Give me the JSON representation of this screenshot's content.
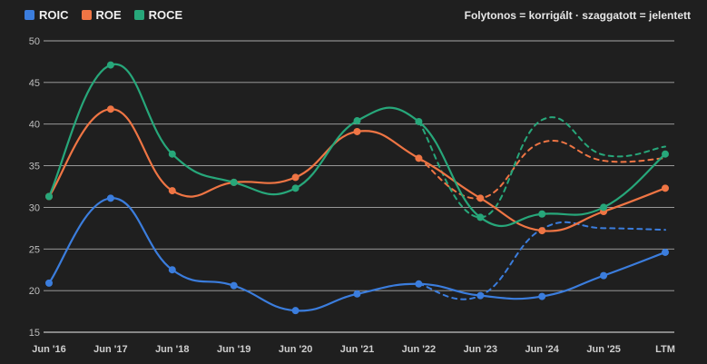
{
  "legend": {
    "items": [
      {
        "name": "ROIC",
        "color": "#3b7ddd"
      },
      {
        "name": "ROE",
        "color": "#ef7544"
      },
      {
        "name": "ROCE",
        "color": "#27a77a"
      }
    ],
    "note": "Folytonos = korrigált · szaggatott = jelentett"
  },
  "chart_data": {
    "type": "line",
    "categories": [
      "Jun '16",
      "Jun '17",
      "Jun '18",
      "Jun '19",
      "Jun '20",
      "Jun '21",
      "Jun '22",
      "Jun '23",
      "Jun '24",
      "Jun '25",
      "LTM"
    ],
    "ylim": [
      15,
      50
    ],
    "yticks": [
      15,
      20,
      25,
      30,
      35,
      40,
      45,
      50
    ],
    "grid": true,
    "legend_position": "top-left",
    "series": [
      {
        "name": "ROIC",
        "color": "#3b7ddd",
        "adjusted": [
          20.9,
          31.1,
          22.5,
          20.6,
          17.6,
          19.6,
          20.8,
          19.4,
          19.3,
          21.8,
          24.6
        ],
        "reported": [
          null,
          null,
          null,
          null,
          null,
          null,
          20.8,
          19.4,
          27.4,
          27.5,
          27.3
        ]
      },
      {
        "name": "ROE",
        "color": "#ef7544",
        "adjusted": [
          31.3,
          41.8,
          32.0,
          33.0,
          33.6,
          39.1,
          35.9,
          31.1,
          27.2,
          29.5,
          32.3
        ],
        "reported": [
          null,
          null,
          null,
          null,
          null,
          null,
          35.9,
          31.1,
          37.8,
          35.6,
          35.9
        ]
      },
      {
        "name": "ROCE",
        "color": "#27a77a",
        "adjusted": [
          31.3,
          47.1,
          36.4,
          33.0,
          32.3,
          40.4,
          40.3,
          28.8,
          29.2,
          30.0,
          36.4
        ],
        "reported": [
          null,
          null,
          null,
          null,
          null,
          null,
          40.3,
          28.8,
          40.5,
          36.3,
          37.3
        ]
      }
    ]
  }
}
